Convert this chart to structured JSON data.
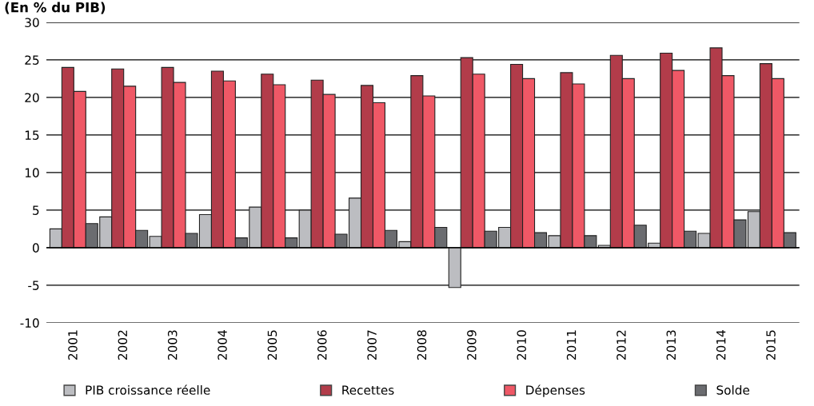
{
  "chart_data": {
    "type": "bar",
    "title": "(En % du PIB)",
    "categories": [
      "2001",
      "2002",
      "2003",
      "2004",
      "2005",
      "2006",
      "2007",
      "2008",
      "2009",
      "2010",
      "2011",
      "2012",
      "2013",
      "2014",
      "2015"
    ],
    "series": [
      {
        "name": "PIB croissance réelle",
        "color": "#bcbdc1",
        "values": [
          2.5,
          4.1,
          1.5,
          4.4,
          5.4,
          5.0,
          6.6,
          0.8,
          -5.3,
          2.7,
          1.6,
          0.3,
          0.6,
          1.9,
          4.8
        ]
      },
      {
        "name": "Recettes",
        "color": "#b23c4a",
        "values": [
          24.0,
          23.8,
          24.0,
          23.5,
          23.1,
          22.3,
          21.6,
          22.9,
          25.3,
          24.4,
          23.3,
          25.6,
          25.9,
          26.6,
          24.5
        ]
      },
      {
        "name": "Dépenses",
        "color": "#ef5866",
        "values": [
          20.8,
          21.5,
          22.0,
          22.2,
          21.7,
          20.4,
          19.3,
          20.2,
          23.1,
          22.5,
          21.8,
          22.5,
          23.6,
          22.9,
          22.5
        ]
      },
      {
        "name": "Solde",
        "color": "#6b6c70",
        "values": [
          3.2,
          2.3,
          1.9,
          1.3,
          1.3,
          1.8,
          2.3,
          2.7,
          2.2,
          2.0,
          1.6,
          3.0,
          2.2,
          3.7,
          2.0
        ]
      }
    ],
    "ylim": [
      -10,
      30
    ],
    "yticks": [
      -10,
      -5,
      0,
      5,
      10,
      15,
      20,
      25,
      30
    ],
    "grid": "y",
    "legend": "bottom"
  }
}
